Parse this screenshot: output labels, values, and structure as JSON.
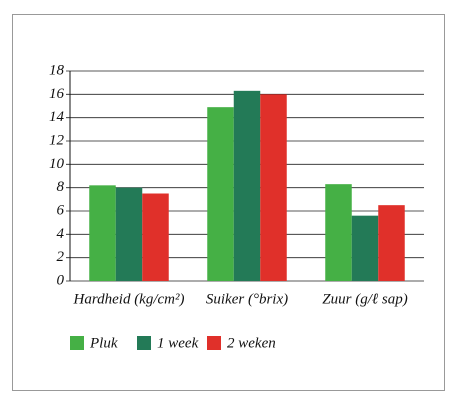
{
  "chart_data": {
    "type": "bar",
    "categories": [
      "Hardheid (kg/cm²)",
      "Suiker (°brix)",
      "Zuur (g/ℓ sap)"
    ],
    "series": [
      {
        "name": "Pluk",
        "color": "#45b045",
        "values": [
          8.2,
          14.9,
          8.3
        ]
      },
      {
        "name": "1 week",
        "color": "#237a57",
        "values": [
          8.0,
          16.3,
          5.6
        ]
      },
      {
        "name": "2 weken",
        "color": "#e0302a",
        "values": [
          7.5,
          16.0,
          6.5
        ]
      }
    ],
    "ylim": [
      0,
      18
    ],
    "yticks": [
      0,
      2,
      4,
      6,
      8,
      10,
      12,
      14,
      16,
      18
    ],
    "grid": true
  }
}
